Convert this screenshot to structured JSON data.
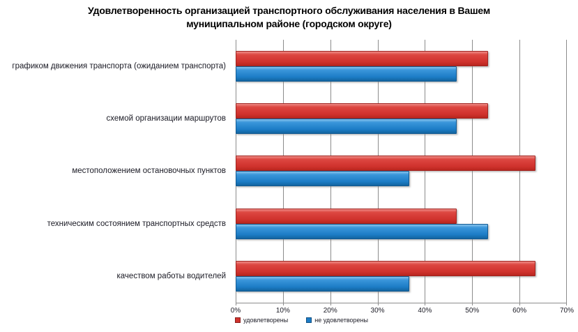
{
  "title": "Удовлетворенность организацией транспортного обслуживания населения в Вашем муниципальном районе (городском округе)",
  "chart_data": {
    "type": "bar",
    "orientation": "horizontal",
    "title": "Удовлетворенность организацией транспортного обслуживания населения в Вашем муниципальном районе (городском округе)",
    "categories": [
      "графиком движения транспорта (ожиданием транспорта)",
      "схемой организации маршрутов",
      "местоположением остановочных пунктов",
      "техническим состоянием транспортных средств",
      "качеством работы водителей"
    ],
    "series": [
      {
        "key": "satisfied",
        "name": "удовлетворены",
        "color": "#d0322d",
        "values": [
          53.3,
          53.3,
          63.3,
          46.7,
          63.3
        ]
      },
      {
        "key": "not-satisfied",
        "name": "не удовлетворены",
        "color": "#1c7cc6",
        "values": [
          46.7,
          46.7,
          36.7,
          53.3,
          36.7
        ]
      }
    ],
    "x_ticks": [
      "0%",
      "10%",
      "20%",
      "30%",
      "40%",
      "50%",
      "60%",
      "70%"
    ],
    "xlim": [
      0,
      70
    ],
    "unit": "%",
    "grid": "vertical-gridlines",
    "gridline_color": "#8c8c8c",
    "legend_position": "bottom-left",
    "background": "#ffffff"
  }
}
